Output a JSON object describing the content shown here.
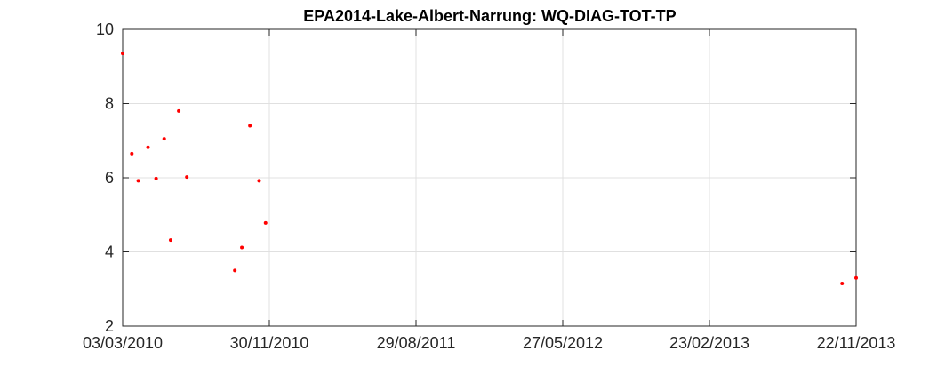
{
  "chart_data": {
    "type": "scatter",
    "title": "EPA2014-Lake-Albert-Narrung: WQ-DIAG-TOT-TP",
    "xlabel": "",
    "ylabel": "",
    "x_tick_labels": [
      "03/03/2010",
      "30/11/2010",
      "29/08/2011",
      "27/05/2012",
      "23/02/2013",
      "22/11/2013"
    ],
    "y_tick_labels": [
      "2",
      "4",
      "6",
      "8",
      "10"
    ],
    "xlim": [
      "03/03/2010",
      "22/11/2013"
    ],
    "ylim": [
      2,
      10
    ],
    "grid": true,
    "marker_color": "#ff0000",
    "points": [
      {
        "x": "03/03/2010",
        "y": 9.35
      },
      {
        "x": "20/03/2010",
        "y": 6.65
      },
      {
        "x": "01/04/2010",
        "y": 5.92
      },
      {
        "x": "19/04/2010",
        "y": 6.82
      },
      {
        "x": "04/05/2010",
        "y": 5.98
      },
      {
        "x": "19/05/2010",
        "y": 7.05
      },
      {
        "x": "31/05/2010",
        "y": 4.32
      },
      {
        "x": "15/06/2010",
        "y": 7.8
      },
      {
        "x": "30/06/2010",
        "y": 6.02
      },
      {
        "x": "27/09/2010",
        "y": 3.5
      },
      {
        "x": "10/10/2010",
        "y": 4.12
      },
      {
        "x": "25/10/2010",
        "y": 7.4
      },
      {
        "x": "11/11/2010",
        "y": 5.92
      },
      {
        "x": "23/11/2010",
        "y": 4.78
      },
      {
        "x": "27/10/2013",
        "y": 3.15
      },
      {
        "x": "22/11/2013",
        "y": 3.3
      }
    ]
  }
}
